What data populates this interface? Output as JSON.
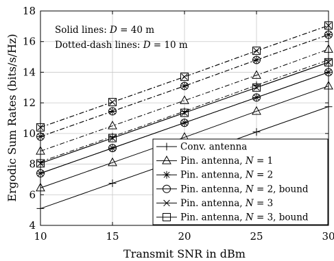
{
  "chart_data": {
    "type": "line",
    "xlabel": "Transmit SNR in dBm",
    "ylabel": "Ergodic Sum Rates (bits/s/Hz)",
    "xlim": [
      10,
      30
    ],
    "ylim": [
      4,
      18
    ],
    "xticks": [
      10,
      15,
      20,
      25,
      30
    ],
    "yticks": [
      4,
      6,
      8,
      10,
      12,
      14,
      16,
      18
    ],
    "grid": true,
    "annotations": [
      "Solid lines: D = 40 m",
      "Dotted-dash lines: D = 10 m"
    ],
    "legend_position": "bottom-right",
    "legend": [
      {
        "label": "Conv. antenna",
        "marker": "plus"
      },
      {
        "label": "Pin. antenna, N = 1",
        "marker": "triangle"
      },
      {
        "label": "Pin. antenna, N = 2",
        "marker": "star"
      },
      {
        "label": "Pin. antenna, N = 2, bound",
        "marker": "circle"
      },
      {
        "label": "Pin. antenna, N = 3",
        "marker": "x"
      },
      {
        "label": "Pin. antenna, N = 3, bound",
        "marker": "square"
      }
    ],
    "x": [
      10,
      15,
      20,
      25,
      30
    ],
    "series": [
      {
        "marker": "plus",
        "style": "solid",
        "values": [
          5.1,
          6.75,
          8.4,
          10.1,
          11.75
        ]
      },
      {
        "marker": "triangle",
        "style": "solid",
        "values": [
          6.45,
          8.1,
          9.75,
          11.45,
          13.1
        ]
      },
      {
        "marker": "star",
        "style": "solid",
        "values": [
          7.4,
          9.05,
          10.7,
          12.35,
          14.0
        ]
      },
      {
        "marker": "circle",
        "style": "solid",
        "values": [
          7.4,
          9.05,
          10.7,
          12.35,
          14.0
        ]
      },
      {
        "marker": "x",
        "style": "solid",
        "values": [
          8.05,
          9.7,
          11.35,
          13.0,
          14.65
        ]
      },
      {
        "marker": "square",
        "style": "solid",
        "values": [
          8.05,
          9.7,
          11.35,
          13.0,
          14.65
        ]
      },
      {
        "marker": "plus",
        "style": "dashdot",
        "values": [
          8.15,
          9.8,
          11.45,
          13.15,
          14.8
        ]
      },
      {
        "marker": "triangle",
        "style": "dashdot",
        "values": [
          8.85,
          10.5,
          12.15,
          13.8,
          15.5
        ]
      },
      {
        "marker": "star",
        "style": "dashdot",
        "values": [
          9.8,
          11.45,
          13.1,
          14.8,
          16.45
        ]
      },
      {
        "marker": "circle",
        "style": "dashdot",
        "values": [
          9.8,
          11.45,
          13.1,
          14.8,
          16.45
        ]
      },
      {
        "marker": "x",
        "style": "dashdot",
        "values": [
          10.4,
          12.05,
          13.7,
          15.4,
          17.05
        ]
      },
      {
        "marker": "square",
        "style": "dashdot",
        "values": [
          10.4,
          12.05,
          13.7,
          15.4,
          17.05
        ]
      }
    ]
  }
}
